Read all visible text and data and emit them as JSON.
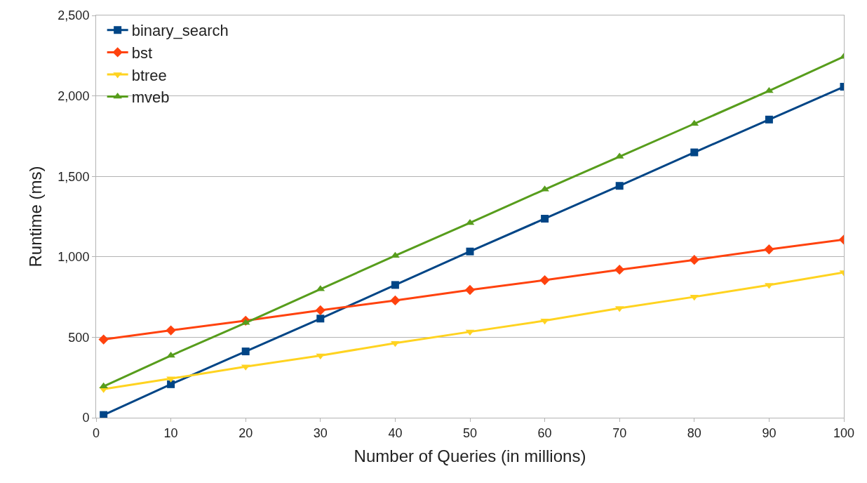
{
  "chart_data": {
    "type": "line",
    "xlabel": "Number of Queries (in millions)",
    "ylabel": "Runtime (ms)",
    "x": [
      1,
      10,
      20,
      30,
      40,
      50,
      60,
      70,
      80,
      90,
      100
    ],
    "xlim": [
      0,
      100
    ],
    "xticks": [
      0,
      10,
      20,
      30,
      40,
      50,
      60,
      70,
      80,
      90,
      100
    ],
    "ylim": [
      0,
      2500
    ],
    "yticks": [
      {
        "value": 0,
        "label": "0"
      },
      {
        "value": 500,
        "label": "500"
      },
      {
        "value": 1000,
        "label": "1,000"
      },
      {
        "value": 1500,
        "label": "1,500"
      },
      {
        "value": 2000,
        "label": "2,000"
      },
      {
        "value": 2500,
        "label": "2,500"
      }
    ],
    "grid": "y",
    "legend": "top left",
    "line_style": "solid",
    "series": [
      {
        "name": "binary_search",
        "color": "#004586",
        "marker": "square",
        "values": [
          17,
          208,
          412,
          616,
          825,
          1033,
          1237,
          1441,
          1649,
          1853,
          2057
        ]
      },
      {
        "name": "bst",
        "color": "#ff420e",
        "marker": "diamond",
        "values": [
          486,
          543,
          603,
          668,
          729,
          794,
          855,
          920,
          981,
          1046,
          1107
        ]
      },
      {
        "name": "btree",
        "color": "#ffd320",
        "marker": "triangle-down",
        "values": [
          178,
          243,
          317,
          386,
          464,
          534,
          603,
          681,
          751,
          825,
          903
        ]
      },
      {
        "name": "mveb",
        "color": "#579d1c",
        "marker": "triangle",
        "values": [
          195,
          386,
          590,
          799,
          1007,
          1211,
          1419,
          1623,
          1827,
          2031,
          2244
        ]
      }
    ]
  }
}
